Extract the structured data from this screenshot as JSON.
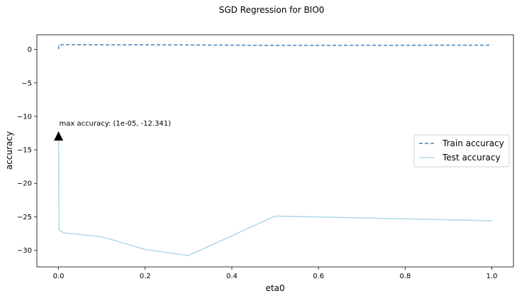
{
  "chart_data": {
    "type": "line",
    "title": "SGD Regression for BIO0",
    "xlabel": "eta0",
    "ylabel": "accuracy",
    "xlim": [
      -0.05,
      1.05
    ],
    "ylim": [
      -32.5,
      2.2
    ],
    "xticks": [
      0.0,
      0.2,
      0.4,
      0.6,
      0.8,
      1.0
    ],
    "xtick_labels": [
      "0.0",
      "0.2",
      "0.4",
      "0.6",
      "0.8",
      "1.0"
    ],
    "yticks": [
      0,
      -5,
      -10,
      -15,
      -20,
      -25,
      -30
    ],
    "ytick_labels": [
      "0",
      "−5",
      "−10",
      "−15",
      "−20",
      "−25",
      "−30"
    ],
    "grid": false,
    "legend_position": "center-right",
    "x": [
      1e-05,
      0.001,
      0.01,
      0.1,
      0.2,
      0.3,
      0.5,
      1.0
    ],
    "series": [
      {
        "name": "Train accuracy",
        "style": "dashed",
        "color": "#4682b4",
        "values": [
          0.05,
          0.7,
          0.72,
          0.7,
          0.7,
          0.68,
          0.62,
          0.65
        ]
      },
      {
        "name": "Test accuracy",
        "style": "solid",
        "color": "#add8e6",
        "values": [
          -12.341,
          -26.9,
          -27.4,
          -28.0,
          -29.9,
          -30.8,
          -24.9,
          -25.6
        ]
      }
    ],
    "annotation": {
      "text": "max accuracy: (1e-05, -12.341)",
      "x": 1e-05,
      "y": -12.341,
      "arrow_color": "#000000"
    }
  }
}
